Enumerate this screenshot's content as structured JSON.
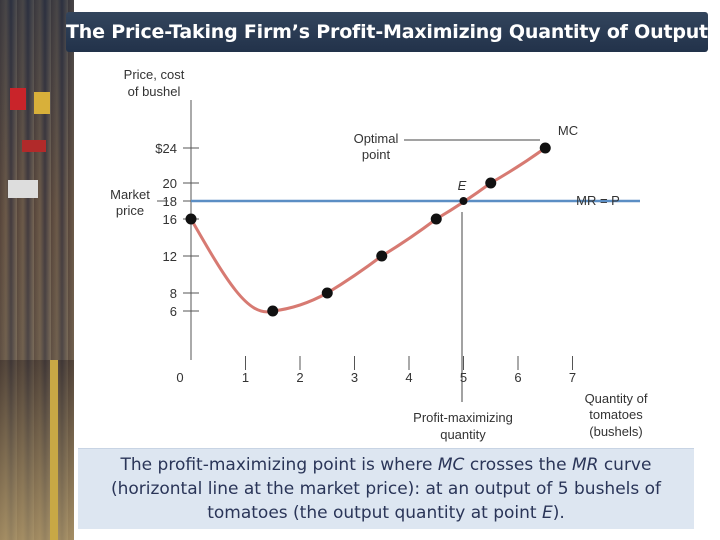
{
  "slide": {
    "title": "The Price-Taking Firm’s Profit-Maximizing Quantity of Output",
    "caption": {
      "part1": "The profit-maximizing point is where ",
      "mc": "MC",
      "part2": " crosses the ",
      "mr": "MR",
      "part3": " curve (horizontal line at the market price):  at an output of 5 bushels of tomatoes (the output quantity at point ",
      "e": "E",
      "part4": ")."
    }
  },
  "colors": {
    "mc_curve": "#d77a72",
    "mr_line": "#5b8ec4",
    "points": "#111111",
    "title_bg": "#2a3a52",
    "caption_bg": "#dde6f1"
  },
  "chart_data": {
    "type": "line",
    "ylabel_line1": "Price, cost",
    "ylabel_line2": "of bushel",
    "xlabel_line1": "Quantity of",
    "xlabel_line2": "tomatoes",
    "xlabel_line3": "(bushels)",
    "y_ticks": [
      {
        "value": 24,
        "label": "$24"
      },
      {
        "value": 20,
        "label": "20"
      },
      {
        "value": 18,
        "label": "18"
      },
      {
        "value": 16,
        "label": "16"
      },
      {
        "value": 12,
        "label": "12"
      },
      {
        "value": 8,
        "label": "8"
      },
      {
        "value": 6,
        "label": "6"
      }
    ],
    "x_ticks": [
      {
        "value": 0,
        "label": "0"
      },
      {
        "value": 1,
        "label": "1"
      },
      {
        "value": 2,
        "label": "2"
      },
      {
        "value": 3,
        "label": "3"
      },
      {
        "value": 4,
        "label": "4"
      },
      {
        "value": 5,
        "label": "5"
      },
      {
        "value": 6,
        "label": "6"
      },
      {
        "value": 7,
        "label": "7"
      }
    ],
    "series": [
      {
        "name": "MC",
        "points": [
          {
            "x": 0,
            "y": 16
          },
          {
            "x": 1.5,
            "y": 6
          },
          {
            "x": 2.5,
            "y": 8
          },
          {
            "x": 3.5,
            "y": 12
          },
          {
            "x": 4.5,
            "y": 16
          },
          {
            "x": 5.5,
            "y": 20
          },
          {
            "x": 6.5,
            "y": 24
          }
        ]
      }
    ],
    "mr_line": {
      "name": "MR = P",
      "y": 18
    },
    "market_price_label": [
      "Market",
      "price"
    ],
    "annotations": {
      "optimal_point": [
        "Optimal",
        "point"
      ],
      "e_label": "E",
      "profit_max_qty": [
        "Profit-maximizing",
        "quantity"
      ]
    },
    "equilibrium": {
      "x": 5,
      "y": 18
    }
  }
}
